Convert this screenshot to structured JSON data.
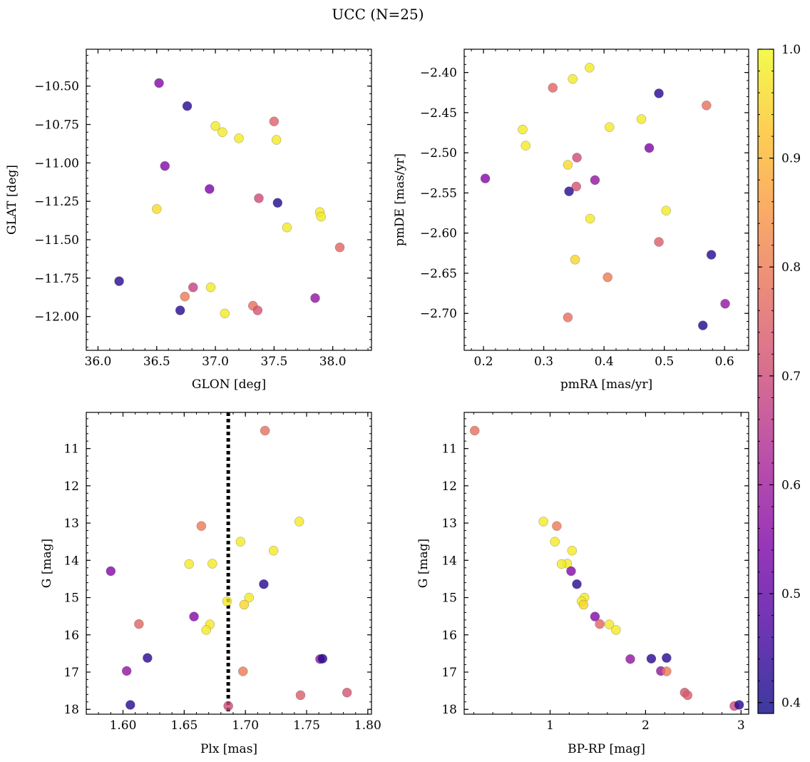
{
  "figure": {
    "title": "UCC (N=25)",
    "colormap": "plasma",
    "marker_edge": "#555555",
    "marker_alpha": 0.8,
    "colorbar": {
      "range": [
        0.39,
        1.0
      ],
      "ticks": [
        0.4,
        0.5,
        0.6,
        0.7,
        0.8,
        0.9,
        1.0
      ],
      "tick_labels": [
        "0.4",
        "0.5",
        "0.6",
        "0.7",
        "0.8",
        "0.9",
        "1.0"
      ],
      "minor_step": 0.02
    }
  },
  "chart_data": [
    {
      "type": "scatter",
      "xlabel": "GLON [deg]",
      "ylabel": "GLAT [deg]",
      "xlim": [
        35.9,
        38.33
      ],
      "ylim": [
        -12.22,
        -10.26
      ],
      "y_inverted": false,
      "xticks": [
        36.0,
        36.5,
        37.0,
        37.5,
        38.0
      ],
      "xtick_labels": [
        "36.0",
        "36.5",
        "37.0",
        "37.5",
        "38.0"
      ],
      "yticks": [
        -12.0,
        -11.75,
        -11.5,
        -11.25,
        -11.0,
        -10.75,
        -10.5
      ],
      "ytick_labels": [
        "−12.00",
        "−11.75",
        "−11.50",
        "−11.25",
        "−11.00",
        "−10.75",
        "−10.50"
      ],
      "x_minor_step": 0.1,
      "y_minor_step": 0.05,
      "points": [
        {
          "x": 36.52,
          "y": -10.48,
          "c": 0.55
        },
        {
          "x": 36.76,
          "y": -10.63,
          "c": 0.42
        },
        {
          "x": 37.0,
          "y": -10.76,
          "c": 0.98
        },
        {
          "x": 37.06,
          "y": -10.8,
          "c": 0.98
        },
        {
          "x": 37.2,
          "y": -10.84,
          "c": 0.98
        },
        {
          "x": 37.5,
          "y": -10.73,
          "c": 0.75
        },
        {
          "x": 37.52,
          "y": -10.85,
          "c": 0.98
        },
        {
          "x": 36.57,
          "y": -11.02,
          "c": 0.55
        },
        {
          "x": 36.95,
          "y": -11.17,
          "c": 0.54
        },
        {
          "x": 37.37,
          "y": -11.23,
          "c": 0.7
        },
        {
          "x": 37.53,
          "y": -11.26,
          "c": 0.41
        },
        {
          "x": 36.5,
          "y": -11.3,
          "c": 0.96
        },
        {
          "x": 37.89,
          "y": -11.32,
          "c": 0.98
        },
        {
          "x": 37.9,
          "y": -11.35,
          "c": 0.98
        },
        {
          "x": 37.61,
          "y": -11.42,
          "c": 0.98
        },
        {
          "x": 38.06,
          "y": -11.55,
          "c": 0.76
        },
        {
          "x": 36.18,
          "y": -11.77,
          "c": 0.42
        },
        {
          "x": 36.81,
          "y": -11.81,
          "c": 0.68
        },
        {
          "x": 36.96,
          "y": -11.81,
          "c": 0.98
        },
        {
          "x": 36.74,
          "y": -11.87,
          "c": 0.8
        },
        {
          "x": 37.85,
          "y": -11.88,
          "c": 0.58
        },
        {
          "x": 36.7,
          "y": -11.96,
          "c": 0.42
        },
        {
          "x": 37.32,
          "y": -11.93,
          "c": 0.78
        },
        {
          "x": 37.36,
          "y": -11.96,
          "c": 0.72
        },
        {
          "x": 37.08,
          "y": -11.98,
          "c": 0.98
        }
      ]
    },
    {
      "type": "scatter",
      "xlabel": "pmRA [mas/yr]",
      "ylabel": "pmDE [mas/yr]",
      "xlim": [
        0.168,
        0.64
      ],
      "ylim": [
        -2.746,
        -2.371
      ],
      "y_inverted": false,
      "xticks": [
        0.2,
        0.3,
        0.4,
        0.5,
        0.6
      ],
      "xtick_labels": [
        "0.2",
        "0.3",
        "0.4",
        "0.5",
        "0.6"
      ],
      "yticks": [
        -2.7,
        -2.65,
        -2.6,
        -2.55,
        -2.5,
        -2.45,
        -2.4
      ],
      "ytick_labels": [
        "−2.70",
        "−2.65",
        "−2.60",
        "−2.55",
        "−2.50",
        "−2.45",
        "−2.40"
      ],
      "x_minor_step": 0.02,
      "y_minor_step": 0.01,
      "points": [
        {
          "x": 0.376,
          "y": -2.394,
          "c": 0.98
        },
        {
          "x": 0.348,
          "y": -2.408,
          "c": 0.98
        },
        {
          "x": 0.315,
          "y": -2.419,
          "c": 0.76
        },
        {
          "x": 0.491,
          "y": -2.426,
          "c": 0.42
        },
        {
          "x": 0.57,
          "y": -2.441,
          "c": 0.78
        },
        {
          "x": 0.462,
          "y": -2.458,
          "c": 0.98
        },
        {
          "x": 0.409,
          "y": -2.468,
          "c": 0.98
        },
        {
          "x": 0.265,
          "y": -2.471,
          "c": 0.98
        },
        {
          "x": 0.27,
          "y": -2.491,
          "c": 0.98
        },
        {
          "x": 0.475,
          "y": -2.494,
          "c": 0.54
        },
        {
          "x": 0.355,
          "y": -2.506,
          "c": 0.7
        },
        {
          "x": 0.34,
          "y": -2.515,
          "c": 0.96
        },
        {
          "x": 0.203,
          "y": -2.532,
          "c": 0.55
        },
        {
          "x": 0.385,
          "y": -2.534,
          "c": 0.58
        },
        {
          "x": 0.354,
          "y": -2.542,
          "c": 0.72
        },
        {
          "x": 0.342,
          "y": -2.548,
          "c": 0.42
        },
        {
          "x": 0.503,
          "y": -2.572,
          "c": 0.98
        },
        {
          "x": 0.377,
          "y": -2.582,
          "c": 0.98
        },
        {
          "x": 0.491,
          "y": -2.611,
          "c": 0.74
        },
        {
          "x": 0.578,
          "y": -2.627,
          "c": 0.42
        },
        {
          "x": 0.352,
          "y": -2.633,
          "c": 0.95
        },
        {
          "x": 0.406,
          "y": -2.655,
          "c": 0.8
        },
        {
          "x": 0.601,
          "y": -2.688,
          "c": 0.58
        },
        {
          "x": 0.34,
          "y": -2.705,
          "c": 0.78
        },
        {
          "x": 0.564,
          "y": -2.715,
          "c": 0.41
        }
      ]
    },
    {
      "type": "scatter",
      "xlabel": "Plx [mas]",
      "ylabel": "G [mag]",
      "xlim": [
        1.57,
        1.803
      ],
      "ylim": [
        10.03,
        18.13
      ],
      "y_inverted": true,
      "xticks": [
        1.6,
        1.65,
        1.7,
        1.75,
        1.8
      ],
      "xtick_labels": [
        "1.60",
        "1.65",
        "1.70",
        "1.75",
        "1.80"
      ],
      "yticks": [
        11,
        12,
        13,
        14,
        15,
        16,
        17,
        18
      ],
      "ytick_labels": [
        "11",
        "12",
        "13",
        "14",
        "15",
        "16",
        "17",
        "18"
      ],
      "x_minor_step": 0.01,
      "y_minor_step": 0.2,
      "vline": {
        "x": 1.686,
        "style": "dotted",
        "color": "#000000"
      },
      "points": [
        {
          "x": 1.716,
          "y": 10.52,
          "c": 0.78
        },
        {
          "x": 1.744,
          "y": 12.96,
          "c": 0.98
        },
        {
          "x": 1.664,
          "y": 13.08,
          "c": 0.8
        },
        {
          "x": 1.696,
          "y": 13.5,
          "c": 0.98
        },
        {
          "x": 1.723,
          "y": 13.74,
          "c": 0.98
        },
        {
          "x": 1.654,
          "y": 14.1,
          "c": 0.98
        },
        {
          "x": 1.673,
          "y": 14.09,
          "c": 0.98
        },
        {
          "x": 1.59,
          "y": 14.29,
          "c": 0.55
        },
        {
          "x": 1.715,
          "y": 14.64,
          "c": 0.42
        },
        {
          "x": 1.703,
          "y": 15.0,
          "c": 0.98
        },
        {
          "x": 1.685,
          "y": 15.1,
          "c": 0.98
        },
        {
          "x": 1.699,
          "y": 15.19,
          "c": 0.95
        },
        {
          "x": 1.658,
          "y": 15.51,
          "c": 0.55
        },
        {
          "x": 1.613,
          "y": 15.71,
          "c": 0.76
        },
        {
          "x": 1.671,
          "y": 15.72,
          "c": 0.98
        },
        {
          "x": 1.668,
          "y": 15.87,
          "c": 0.98
        },
        {
          "x": 1.62,
          "y": 16.62,
          "c": 0.42
        },
        {
          "x": 1.761,
          "y": 16.65,
          "c": 0.58
        },
        {
          "x": 1.763,
          "y": 16.64,
          "c": 0.42
        },
        {
          "x": 1.603,
          "y": 16.97,
          "c": 0.58
        },
        {
          "x": 1.698,
          "y": 16.98,
          "c": 0.8
        },
        {
          "x": 1.783,
          "y": 17.55,
          "c": 0.72
        },
        {
          "x": 1.745,
          "y": 17.62,
          "c": 0.74
        },
        {
          "x": 1.606,
          "y": 17.88,
          "c": 0.42
        },
        {
          "x": 1.686,
          "y": 17.91,
          "c": 0.7
        }
      ]
    },
    {
      "type": "scatter",
      "xlabel": "BP-RP [mag]",
      "ylabel": "G [mag]",
      "xlim": [
        0.1,
        3.08
      ],
      "ylim": [
        10.03,
        18.13
      ],
      "y_inverted": true,
      "xticks": [
        1,
        2,
        3
      ],
      "xtick_labels": [
        "1",
        "2",
        "3"
      ],
      "yticks": [
        11,
        12,
        13,
        14,
        15,
        16,
        17,
        18
      ],
      "ytick_labels": [
        "11",
        "12",
        "13",
        "14",
        "15",
        "16",
        "17",
        "18"
      ],
      "x_minor_step": 0.2,
      "y_minor_step": 0.2,
      "points": [
        {
          "x": 0.21,
          "y": 10.52,
          "c": 0.78
        },
        {
          "x": 0.93,
          "y": 12.96,
          "c": 0.98
        },
        {
          "x": 1.07,
          "y": 13.08,
          "c": 0.8
        },
        {
          "x": 1.05,
          "y": 13.5,
          "c": 0.98
        },
        {
          "x": 1.23,
          "y": 13.74,
          "c": 0.98
        },
        {
          "x": 1.18,
          "y": 14.09,
          "c": 0.98
        },
        {
          "x": 1.12,
          "y": 14.1,
          "c": 0.98
        },
        {
          "x": 1.22,
          "y": 14.29,
          "c": 0.55
        },
        {
          "x": 1.28,
          "y": 14.64,
          "c": 0.42
        },
        {
          "x": 1.36,
          "y": 15.0,
          "c": 0.98
        },
        {
          "x": 1.33,
          "y": 15.1,
          "c": 0.98
        },
        {
          "x": 1.35,
          "y": 15.19,
          "c": 0.95
        },
        {
          "x": 1.47,
          "y": 15.51,
          "c": 0.55
        },
        {
          "x": 1.52,
          "y": 15.71,
          "c": 0.76
        },
        {
          "x": 1.62,
          "y": 15.72,
          "c": 0.98
        },
        {
          "x": 1.69,
          "y": 15.87,
          "c": 0.98
        },
        {
          "x": 1.84,
          "y": 16.65,
          "c": 0.58
        },
        {
          "x": 2.06,
          "y": 16.64,
          "c": 0.42
        },
        {
          "x": 2.22,
          "y": 16.62,
          "c": 0.42
        },
        {
          "x": 2.16,
          "y": 16.97,
          "c": 0.58
        },
        {
          "x": 2.22,
          "y": 16.98,
          "c": 0.8
        },
        {
          "x": 2.41,
          "y": 17.55,
          "c": 0.72
        },
        {
          "x": 2.44,
          "y": 17.62,
          "c": 0.74
        },
        {
          "x": 2.93,
          "y": 17.91,
          "c": 0.7
        },
        {
          "x": 2.98,
          "y": 17.88,
          "c": 0.42
        }
      ]
    }
  ]
}
